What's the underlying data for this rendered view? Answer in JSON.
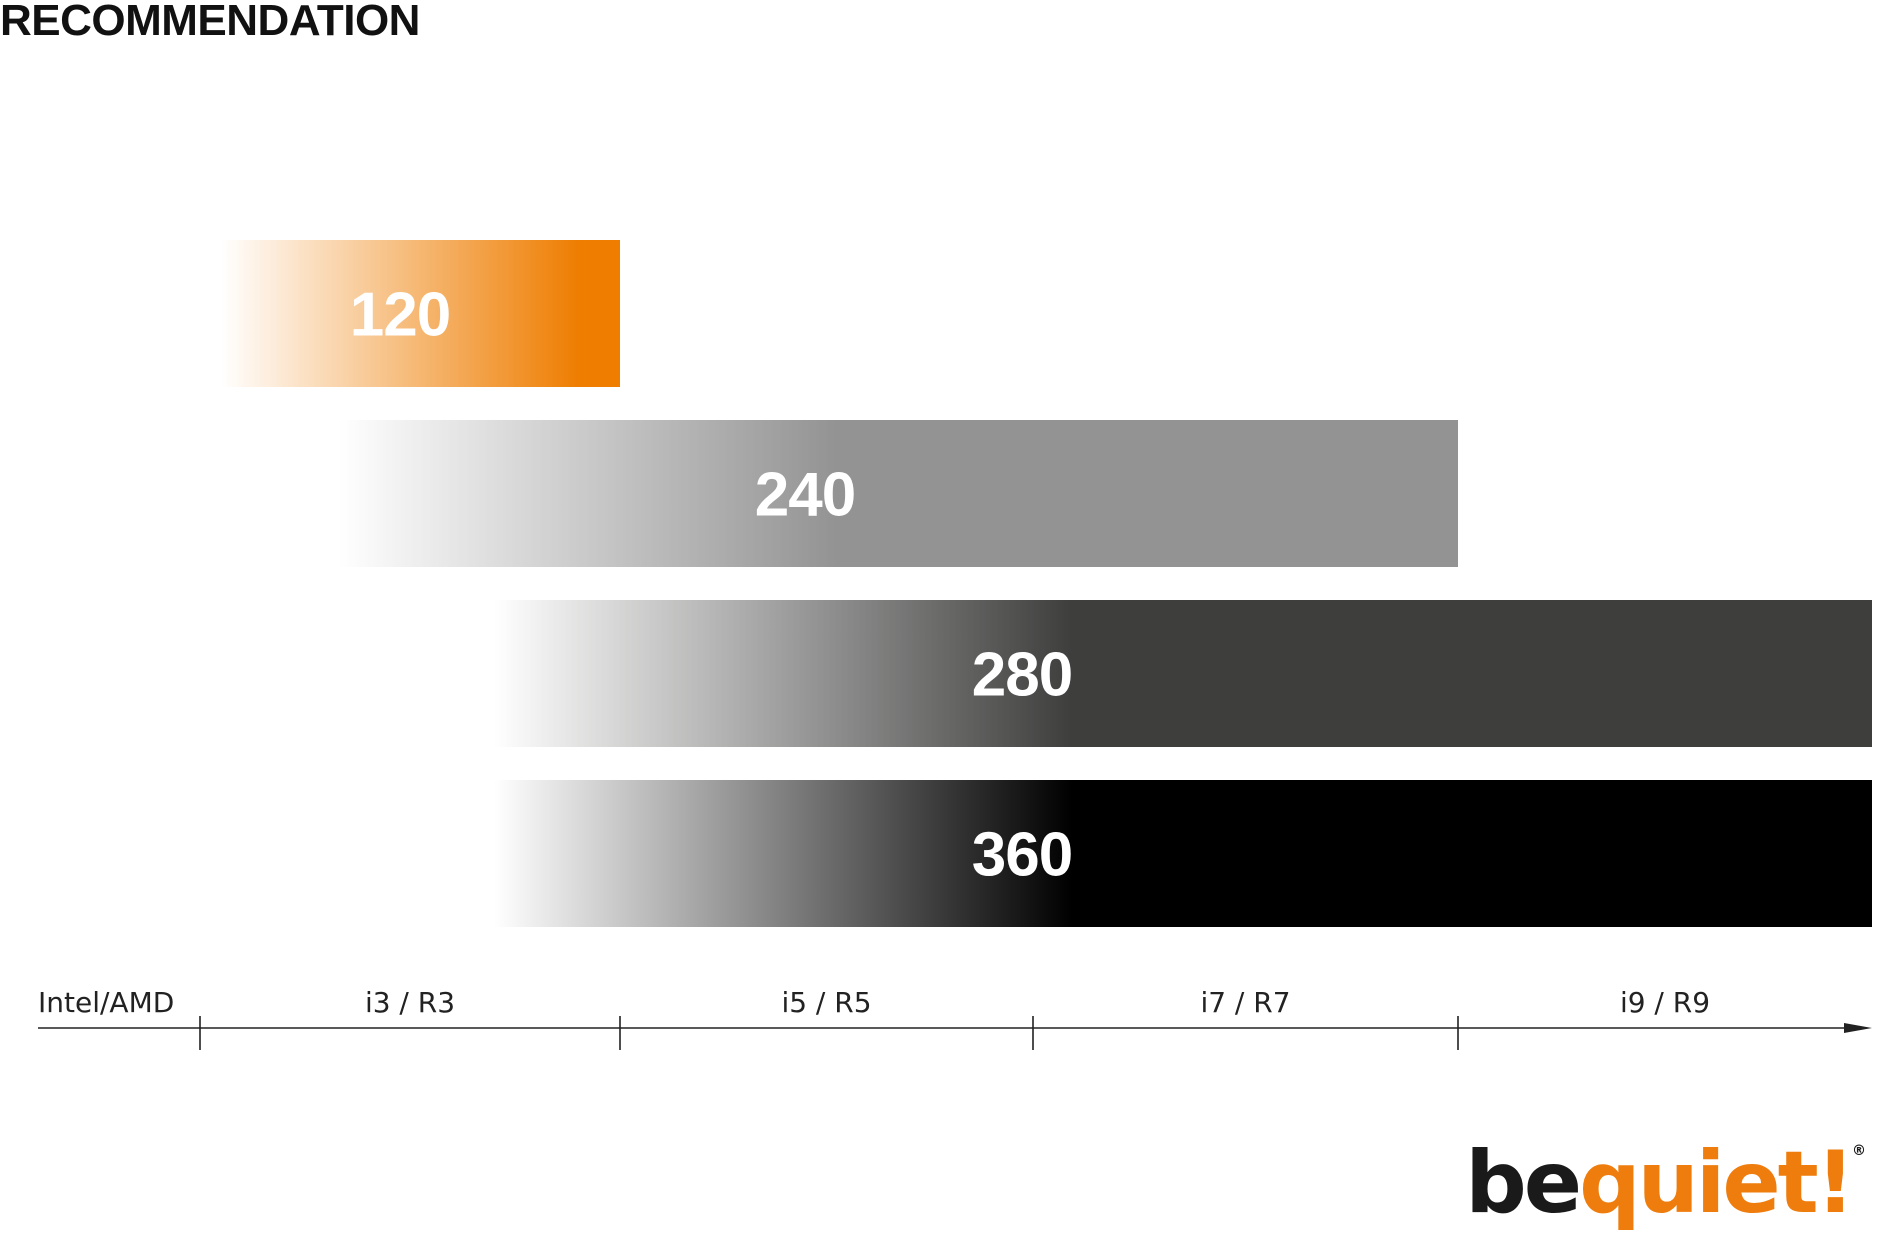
{
  "title": "RECOMMENDATION",
  "chart_data": {
    "type": "bar",
    "orientation": "horizontal",
    "axis_label": "Intel/AMD",
    "categories": [
      "i3 / R3",
      "i5 / R5",
      "i7 / R7",
      "i9 / R9"
    ],
    "x_domain": [
      0,
      4
    ],
    "bars": [
      {
        "label": "120",
        "start": 0.05,
        "end": 1.0,
        "color": "#ee7d00"
      },
      {
        "label": "240",
        "start": 0.33,
        "end": 3.0,
        "color": "#939393"
      },
      {
        "label": "280",
        "start": 0.7,
        "end": 4.0,
        "color": "#3e3e3d"
      },
      {
        "label": "360",
        "start": 0.7,
        "end": 4.0,
        "color": "#000000"
      }
    ]
  },
  "logo": {
    "part1": "be",
    "part2": "quiet!",
    "reg": "®"
  }
}
